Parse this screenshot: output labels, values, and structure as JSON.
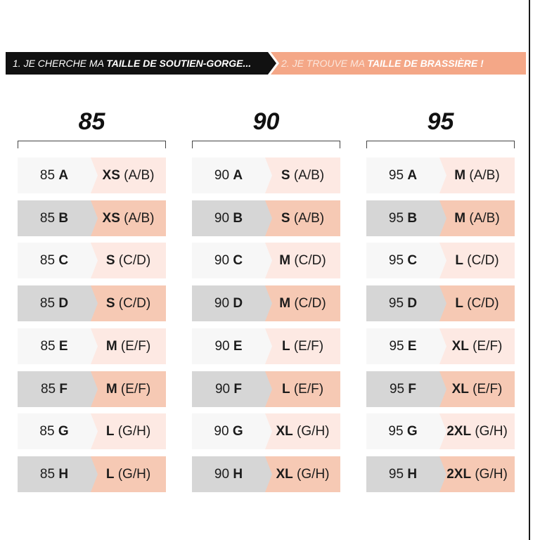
{
  "banner": {
    "step1_prefix": "1. JE CHERCHE MA ",
    "step1_bold": "TAILLE DE SOUTIEN-GORGE...",
    "step2_prefix": "2. JE TROUVE MA ",
    "step2_bold": "TAILLE DE BRASSIÈRE",
    "step2_suffix": " !"
  },
  "colors": {
    "banner_dark": "#111111",
    "banner_peach": "#f4a787",
    "row_light_left": "#f7f7f7",
    "row_light_right": "#fde9e3",
    "row_dark_left": "#d6d6d6",
    "row_dark_right": "#f6c9b4"
  },
  "columns": [
    {
      "title": "85",
      "rows": [
        {
          "band": "85 ",
          "cup": "A",
          "size": "XS",
          "cups": " (A/B)"
        },
        {
          "band": "85 ",
          "cup": "B",
          "size": "XS",
          "cups": " (A/B)"
        },
        {
          "band": "85 ",
          "cup": "C",
          "size": "S",
          "cups": " (C/D)"
        },
        {
          "band": "85 ",
          "cup": "D",
          "size": "S",
          "cups": " (C/D)"
        },
        {
          "band": "85 ",
          "cup": "E",
          "size": "M",
          "cups": " (E/F)"
        },
        {
          "band": "85 ",
          "cup": "F",
          "size": "M",
          "cups": " (E/F)"
        },
        {
          "band": "85 ",
          "cup": "G",
          "size": "L",
          "cups": " (G/H)"
        },
        {
          "band": "85 ",
          "cup": "H",
          "size": "L",
          "cups": " (G/H)"
        }
      ]
    },
    {
      "title": "90",
      "rows": [
        {
          "band": "90 ",
          "cup": "A",
          "size": "S",
          "cups": " (A/B)"
        },
        {
          "band": "90 ",
          "cup": "B",
          "size": "S",
          "cups": " (A/B)"
        },
        {
          "band": "90 ",
          "cup": "C",
          "size": "M",
          "cups": " (C/D)"
        },
        {
          "band": "90 ",
          "cup": "D",
          "size": "M",
          "cups": " (C/D)"
        },
        {
          "band": "90 ",
          "cup": "E",
          "size": "L",
          "cups": " (E/F)"
        },
        {
          "band": "90 ",
          "cup": "F",
          "size": "L",
          "cups": " (E/F)"
        },
        {
          "band": "90 ",
          "cup": "G",
          "size": "XL",
          "cups": " (G/H)"
        },
        {
          "band": "90 ",
          "cup": "H",
          "size": "XL",
          "cups": " (G/H)"
        }
      ]
    },
    {
      "title": "95",
      "rows": [
        {
          "band": "95 ",
          "cup": "A",
          "size": "M",
          "cups": " (A/B)"
        },
        {
          "band": "95 ",
          "cup": "B",
          "size": "M",
          "cups": " (A/B)"
        },
        {
          "band": "95 ",
          "cup": "C",
          "size": "L",
          "cups": " (C/D)"
        },
        {
          "band": "95 ",
          "cup": "D",
          "size": "L",
          "cups": " (C/D)"
        },
        {
          "band": "95 ",
          "cup": "E",
          "size": "XL",
          "cups": " (E/F)"
        },
        {
          "band": "95 ",
          "cup": "F",
          "size": "XL",
          "cups": " (E/F)"
        },
        {
          "band": "95 ",
          "cup": "G",
          "size": "2XL",
          "cups": " (G/H)"
        },
        {
          "band": "95 ",
          "cup": "H",
          "size": "2XL",
          "cups": " (G/H)"
        }
      ]
    }
  ]
}
